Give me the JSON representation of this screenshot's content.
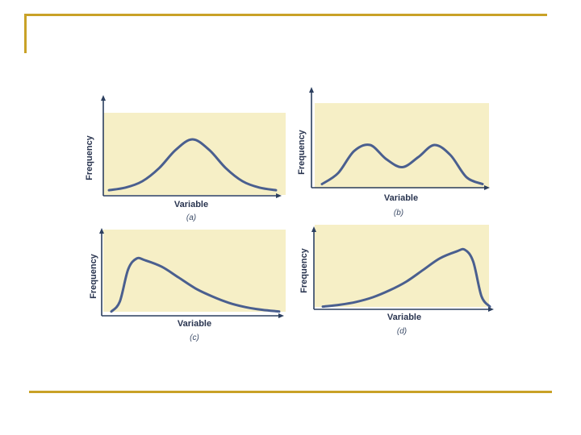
{
  "accent_color": "#c9a227",
  "chart_data": [
    {
      "type": "line",
      "panel_label": "(a)",
      "xlabel": "Variable",
      "ylabel": "Frequency",
      "shape": "symmetric unimodal (normal)",
      "x": [
        0,
        0.1,
        0.2,
        0.3,
        0.4,
        0.5,
        0.6,
        0.7,
        0.8,
        0.9,
        1.0
      ],
      "y": [
        0.03,
        0.08,
        0.2,
        0.45,
        0.8,
        1.0,
        0.8,
        0.45,
        0.2,
        0.08,
        0.03
      ]
    },
    {
      "type": "line",
      "panel_label": "(b)",
      "xlabel": "Variable",
      "ylabel": "Frequency",
      "shape": "bimodal",
      "x": [
        0,
        0.1,
        0.2,
        0.3,
        0.4,
        0.5,
        0.6,
        0.7,
        0.8,
        0.9,
        1.0
      ],
      "y": [
        0.03,
        0.3,
        0.85,
        1.0,
        0.65,
        0.45,
        0.7,
        1.0,
        0.75,
        0.2,
        0.03
      ]
    },
    {
      "type": "line",
      "panel_label": "(c)",
      "xlabel": "Variable",
      "ylabel": "Frequency",
      "shape": "right-skewed (positive skew)",
      "x": [
        0,
        0.05,
        0.1,
        0.15,
        0.2,
        0.3,
        0.4,
        0.5,
        0.6,
        0.7,
        0.8,
        0.9,
        1.0
      ],
      "y": [
        0.02,
        0.2,
        0.8,
        1.0,
        0.97,
        0.85,
        0.65,
        0.45,
        0.3,
        0.18,
        0.1,
        0.05,
        0.02
      ]
    },
    {
      "type": "line",
      "panel_label": "(d)",
      "xlabel": "Variable",
      "ylabel": "Frequency",
      "shape": "left-skewed (negative skew)",
      "x": [
        0,
        0.1,
        0.2,
        0.3,
        0.4,
        0.5,
        0.6,
        0.7,
        0.8,
        0.85,
        0.9,
        0.95,
        1.0
      ],
      "y": [
        0.02,
        0.05,
        0.1,
        0.18,
        0.3,
        0.45,
        0.65,
        0.85,
        0.97,
        1.0,
        0.8,
        0.2,
        0.02
      ]
    }
  ]
}
